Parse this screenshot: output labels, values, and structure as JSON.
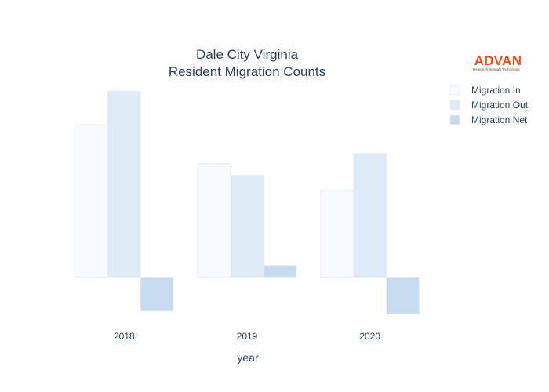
{
  "chart_data": {
    "type": "bar",
    "title": [
      "Dale City Virginia",
      "Resident Migration Counts"
    ],
    "xlabel": "year",
    "ylabel": "",
    "categories": [
      "2018",
      "2019",
      "2020"
    ],
    "series": [
      {
        "name": "Migration In",
        "values": [
          1700,
          1270,
          970
        ],
        "color": "#f7fbff"
      },
      {
        "name": "Migration Out",
        "values": [
          2080,
          1140,
          1380
        ],
        "color": "#deebf7"
      },
      {
        "name": "Migration Net",
        "values": [
          -380,
          130,
          -410
        ],
        "color": "#c6dbef"
      }
    ],
    "ylim": [
      -460,
      2080
    ],
    "grid": false,
    "yaxis_visible": false,
    "legend_position": "top-right"
  },
  "logo": {
    "text": "ADVAN",
    "tagline": "Research through Technology",
    "color": "#e8501e"
  }
}
